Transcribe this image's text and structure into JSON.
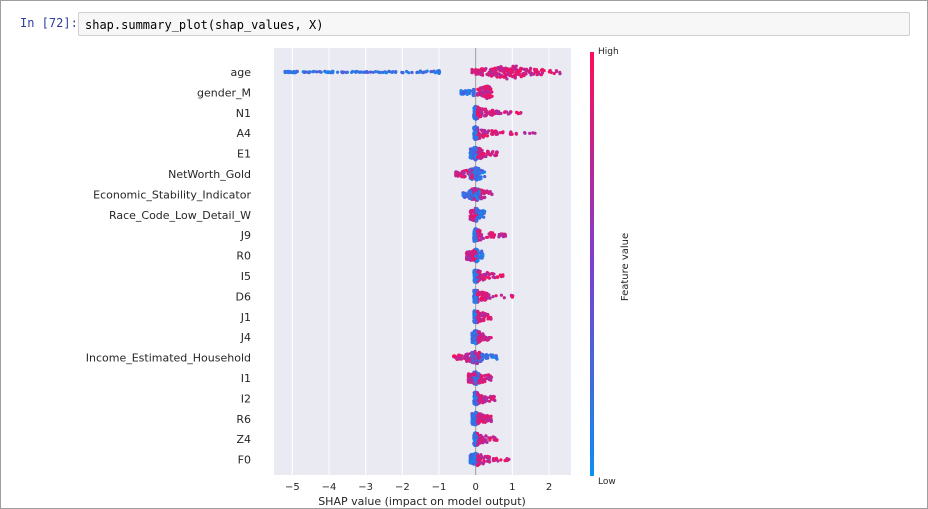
{
  "cell": {
    "prompt": "In [72]:",
    "code": "shap.summary_plot(shap_values, X)"
  },
  "colors": {
    "low": "#1e88e5",
    "high": "#ff0d57",
    "plot_background": "#eaeaf2"
  },
  "chart_data": {
    "type": "scatter",
    "xlabel": "SHAP value (impact on model output)",
    "xlim": [
      -5.5,
      2.6
    ],
    "xticks": [
      -5,
      -4,
      -3,
      -2,
      -1,
      0,
      1,
      2
    ],
    "grid": true,
    "colorbar": {
      "title": "Feature value",
      "high_label": "High",
      "low_label": "Low"
    },
    "features": [
      {
        "name": "age",
        "min": -5.2,
        "max": 2.3,
        "low_range": [
          -5.2,
          -1.0
        ],
        "high_range": [
          -0.1,
          2.3
        ],
        "peak": 0.9,
        "spread": 1.1
      },
      {
        "name": "gender_M",
        "min": -0.4,
        "max": 0.45,
        "low_range": [
          -0.4,
          -0.05
        ],
        "high_range": [
          0.05,
          0.45
        ],
        "peak": 0.3,
        "spread": 0.9
      },
      {
        "name": "N1",
        "min": -0.05,
        "max": 1.25,
        "low_range": [
          -0.05,
          0.05
        ],
        "high_range": [
          0.05,
          1.25
        ],
        "peak": 0.0,
        "spread": 0.5
      },
      {
        "name": "A4",
        "min": -0.05,
        "max": 1.75,
        "low_range": [
          -0.05,
          0.05
        ],
        "high_range": [
          0.05,
          1.75
        ],
        "peak": 0.0,
        "spread": 0.5
      },
      {
        "name": "E1",
        "min": -0.15,
        "max": 0.75,
        "low_range": [
          -0.15,
          0.05
        ],
        "high_range": [
          0.05,
          0.75
        ],
        "peak": 0.0,
        "spread": 0.6
      },
      {
        "name": "NetWorth_Gold",
        "min": -0.55,
        "max": 0.55,
        "low_range": [
          -0.15,
          0.25
        ],
        "high_range": [
          -0.55,
          -0.1
        ],
        "peak": 0.0,
        "spread": 0.8
      },
      {
        "name": "Economic_Stability_Indicator",
        "min": -0.35,
        "max": 0.45,
        "low_range": [
          -0.35,
          0.1
        ],
        "high_range": [
          -0.1,
          0.45
        ],
        "peak": 0.0,
        "spread": 0.9
      },
      {
        "name": "Race_Code_Low_Detail_W",
        "min": -0.15,
        "max": 0.25,
        "low_range": [
          0.02,
          0.25
        ],
        "high_range": [
          -0.15,
          0.02
        ],
        "peak": 0.0,
        "spread": 0.8
      },
      {
        "name": "J9",
        "min": -0.05,
        "max": 0.85,
        "low_range": [
          -0.05,
          0.05
        ],
        "high_range": [
          0.05,
          0.85
        ],
        "peak": 0.0,
        "spread": 0.5
      },
      {
        "name": "R0",
        "min": -0.25,
        "max": 0.2,
        "low_range": [
          0.0,
          0.2
        ],
        "high_range": [
          -0.25,
          0.0
        ],
        "peak": 0.0,
        "spread": 0.8
      },
      {
        "name": "I5",
        "min": -0.05,
        "max": 0.75,
        "low_range": [
          -0.05,
          0.05
        ],
        "high_range": [
          0.05,
          0.75
        ],
        "peak": 0.0,
        "spread": 0.5
      },
      {
        "name": "D6",
        "min": -0.05,
        "max": 1.05,
        "low_range": [
          -0.05,
          0.05
        ],
        "high_range": [
          0.05,
          1.05
        ],
        "peak": 0.0,
        "spread": 0.5
      },
      {
        "name": "J1",
        "min": -0.05,
        "max": 0.42,
        "low_range": [
          -0.05,
          0.05
        ],
        "high_range": [
          0.05,
          0.42
        ],
        "peak": 0.0,
        "spread": 0.5
      },
      {
        "name": "J4",
        "min": -0.1,
        "max": 0.45,
        "low_range": [
          -0.1,
          0.05
        ],
        "high_range": [
          0.05,
          0.45
        ],
        "peak": 0.0,
        "spread": 0.5
      },
      {
        "name": "Income_Estimated_Household",
        "min": -0.6,
        "max": 0.6,
        "low_range": [
          -0.1,
          0.6
        ],
        "high_range": [
          -0.6,
          0.1
        ],
        "peak": 0.0,
        "spread": 0.9
      },
      {
        "name": "I1",
        "min": -0.2,
        "max": 0.45,
        "low_range": [
          -0.05,
          0.1
        ],
        "high_range": [
          -0.2,
          0.45
        ],
        "peak": 0.0,
        "spread": 0.7
      },
      {
        "name": "I2",
        "min": -0.05,
        "max": 0.55,
        "low_range": [
          -0.05,
          0.05
        ],
        "high_range": [
          0.05,
          0.55
        ],
        "peak": 0.0,
        "spread": 0.5
      },
      {
        "name": "R6",
        "min": -0.1,
        "max": 0.45,
        "low_range": [
          -0.1,
          0.05
        ],
        "high_range": [
          0.05,
          0.45
        ],
        "peak": 0.0,
        "spread": 0.5
      },
      {
        "name": "Z4",
        "min": -0.05,
        "max": 0.65,
        "low_range": [
          -0.05,
          0.05
        ],
        "high_range": [
          0.05,
          0.65
        ],
        "peak": 0.0,
        "spread": 0.5
      },
      {
        "name": "F0",
        "min": -0.15,
        "max": 0.95,
        "low_range": [
          -0.15,
          0.05
        ],
        "high_range": [
          0.05,
          0.95
        ],
        "peak": 0.0,
        "spread": 0.5
      }
    ]
  }
}
